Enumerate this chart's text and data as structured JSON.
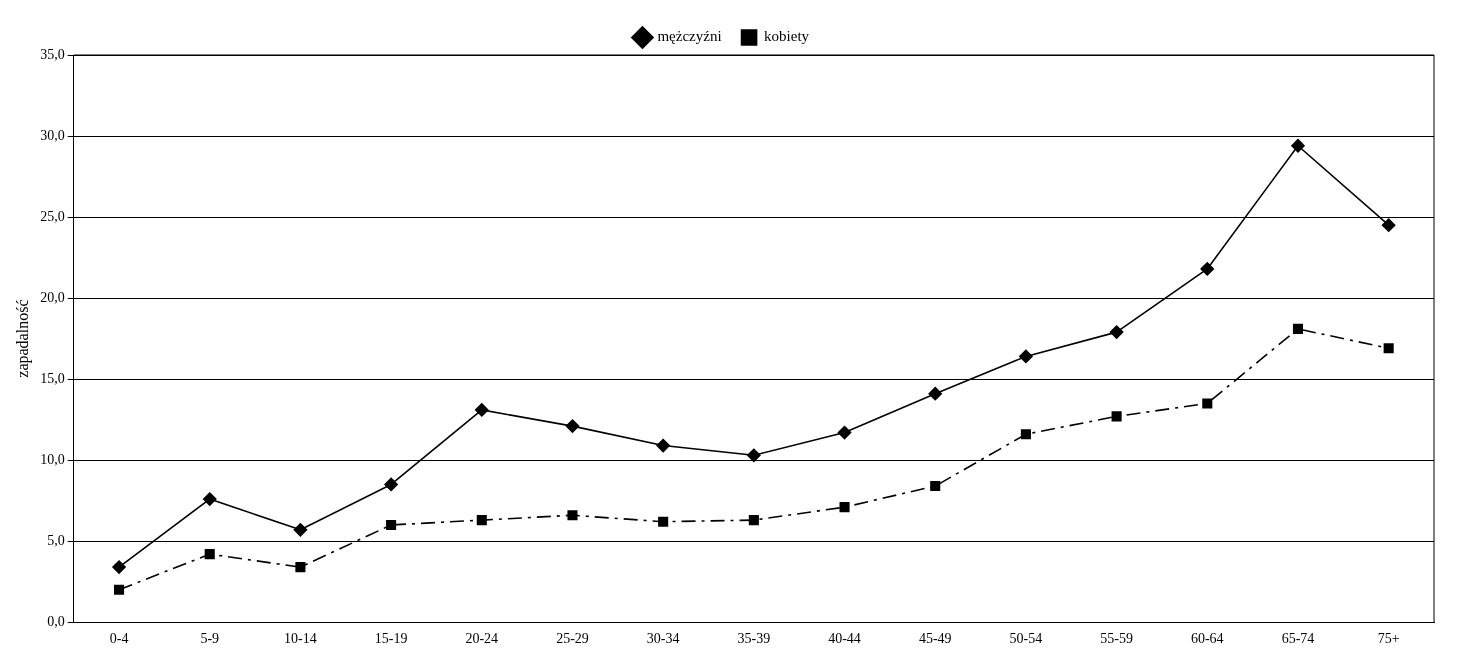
{
  "chart_data": {
    "type": "line",
    "ylabel": "zapadalność",
    "categories": [
      "0-4",
      "5-9",
      "10-14",
      "15-19",
      "20-24",
      "25-29",
      "30-34",
      "35-39",
      "40-44",
      "45-49",
      "50-54",
      "55-59",
      "60-64",
      "65-74",
      "75+"
    ],
    "series": [
      {
        "name": "mężczyźni",
        "color": "#000000",
        "marker": "diamond",
        "line_style": "solid",
        "values": [
          3.4,
          7.6,
          5.7,
          8.5,
          13.1,
          12.1,
          10.9,
          10.3,
          11.7,
          14.1,
          16.4,
          17.9,
          21.8,
          29.4,
          24.5
        ]
      },
      {
        "name": "kobiety",
        "color": "#000000",
        "marker": "square",
        "line_style": "dashed",
        "values": [
          2.0,
          4.2,
          3.4,
          6.0,
          6.3,
          6.6,
          6.2,
          6.3,
          7.1,
          8.4,
          11.6,
          12.7,
          13.5,
          18.1,
          16.9
        ]
      }
    ],
    "ylim": [
      0,
      35
    ],
    "yticks": [
      {
        "value": 0,
        "label": "0,0"
      },
      {
        "value": 5,
        "label": "5,0"
      },
      {
        "value": 10,
        "label": "10,0"
      },
      {
        "value": 15,
        "label": "15,0"
      },
      {
        "value": 20,
        "label": "20,0"
      },
      {
        "value": 25,
        "label": "25,0"
      },
      {
        "value": 30,
        "label": "30,0"
      },
      {
        "value": 35,
        "label": "35,0"
      }
    ],
    "grid": "y",
    "legend": "top"
  }
}
